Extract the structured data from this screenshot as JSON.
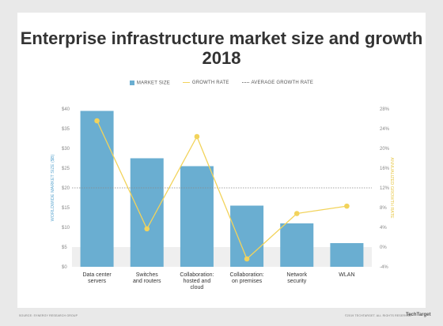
{
  "chart_data": {
    "type": "bar",
    "title": "Enterprise infrastructure market size and growth 2018",
    "categories": [
      [
        "Data center",
        "servers"
      ],
      [
        "Switches",
        "and routers"
      ],
      [
        "Collaboration:",
        "hosted and",
        "cloud"
      ],
      [
        "Collaboration:",
        "on premises"
      ],
      [
        "Network",
        "security"
      ],
      [
        "WLAN"
      ]
    ],
    "series": [
      {
        "name": "MARKET SIZE",
        "type": "bar",
        "axis": "left",
        "values": [
          39.5,
          27.5,
          25.5,
          15.5,
          11,
          6
        ]
      },
      {
        "name": "GROWTH RATE",
        "type": "line",
        "axis": "right",
        "values": [
          25.6,
          3.7,
          22.4,
          -2.4,
          6.8,
          8.3
        ]
      }
    ],
    "average_growth_rate": {
      "name": "AVERAGE GROWTH RATE",
      "value": 12
    },
    "ylabel": "WORLDWIDE MARKET SIZE ($B)",
    "y2label": "ANNUALIZED GROWTH RATE",
    "ylim": [
      0,
      40
    ],
    "y2lim": [
      -4,
      28
    ],
    "yticks": [
      "$0",
      "$5",
      "$10",
      "$15",
      "$20",
      "$25",
      "$30",
      "$35",
      "$40"
    ],
    "y2ticks": [
      "-4%",
      "0%",
      "4%",
      "8%",
      "12%",
      "16%",
      "20%",
      "24%",
      "28%"
    ],
    "colors": {
      "bar": "#6aaed1",
      "line": "#f2d35b",
      "avg": "#888888",
      "shade": "#efefef",
      "ylabel": "#5fa7d0",
      "y2label": "#e8c84a"
    },
    "legend": "top-center",
    "grid": false
  },
  "footer": {
    "source": "SOURCE: SYNERGY RESEARCH GROUP",
    "copyright": "©2019 TECHTARGET. ALL RIGHTS RESERVED",
    "brand": "TechTarget"
  }
}
